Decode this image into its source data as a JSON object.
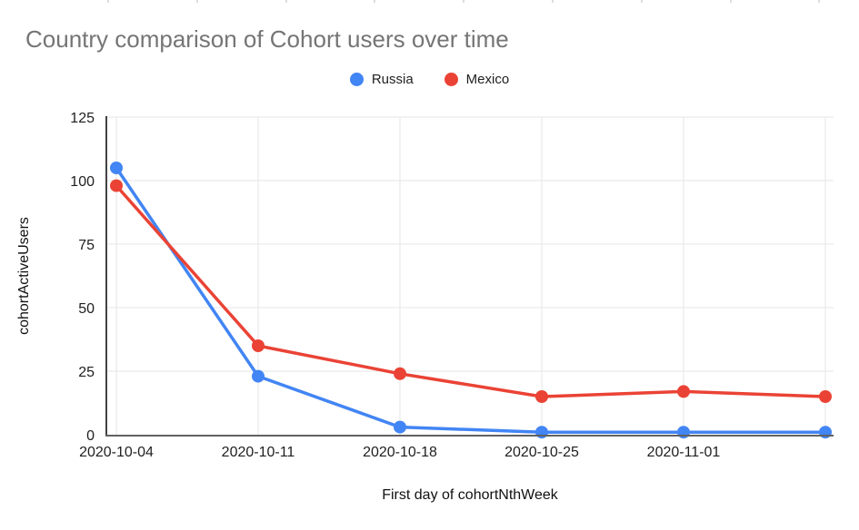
{
  "chart": {
    "title": "Country comparison of Cohort users over time",
    "x_axis_title": "First day of cohortNthWeek",
    "y_axis_title": "cohortActiveUsers"
  },
  "chart_data": {
    "type": "line",
    "title": "Country comparison of Cohort users over time",
    "xlabel": "First day of cohortNthWeek",
    "ylabel": "cohortActiveUsers",
    "categories": [
      "2020-10-04",
      "2020-10-11",
      "2020-10-18",
      "2020-10-25",
      "2020-11-01",
      ""
    ],
    "x_tick_labels": [
      "2020-10-04",
      "2020-10-11",
      "2020-10-18",
      "2020-10-25",
      "2020-11-01",
      ""
    ],
    "series": [
      {
        "name": "Russia",
        "color": "#4285F4",
        "values": [
          105,
          23,
          3,
          1,
          1,
          1
        ]
      },
      {
        "name": "Mexico",
        "color": "#EA4335",
        "values": [
          98,
          35,
          24,
          15,
          17,
          15
        ]
      }
    ],
    "ylim": [
      0,
      125
    ],
    "y_ticks": [
      0,
      25,
      50,
      75,
      100,
      125
    ],
    "grid": true,
    "legend_position": "top",
    "colors": {
      "title_text": "#757575",
      "tick_text": "#1f1f1f",
      "gridline": "#e6e6e6",
      "y_axis_line": "#424242",
      "x_axis_line": "#616161"
    }
  }
}
